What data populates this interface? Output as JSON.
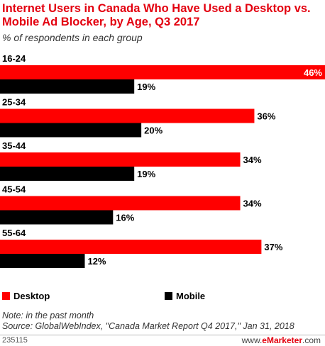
{
  "chart_data": {
    "type": "bar",
    "orientation": "horizontal",
    "title": "Internet Users in Canada Who Have Used a Desktop vs. Mobile Ad Blocker, by Age, Q3 2017",
    "subtitle": "% of respondents in each group",
    "categories": [
      "16-24",
      "25-34",
      "35-44",
      "45-54",
      "55-64"
    ],
    "series": [
      {
        "name": "Desktop",
        "values": [
          46,
          36,
          34,
          34,
          37
        ],
        "labels": [
          "46%",
          "36%",
          "34%",
          "34%",
          "37%"
        ],
        "color": "#ff0000"
      },
      {
        "name": "Mobile",
        "values": [
          19,
          20,
          19,
          16,
          12
        ],
        "labels": [
          "19%",
          "20%",
          "19%",
          "16%",
          "12%"
        ],
        "color": "#000000"
      }
    ],
    "xlim": [
      0,
      46
    ],
    "grid": false,
    "legend_position": "bottom-left"
  },
  "legend": {
    "desktop_label": "Desktop",
    "mobile_label": "Mobile",
    "desktop_color": "#ff0000",
    "mobile_color": "#000000"
  },
  "notes": {
    "note": "Note: in the past month",
    "source": "Source: GlobalWebIndex, \"Canada Market Report Q4 2017,\" Jan 31, 2018"
  },
  "footer": {
    "chart_id": "235115",
    "brand_prefix": "www.",
    "brand_name": "eMarketer",
    "brand_suffix": ".com"
  },
  "colors": {
    "title": "#e3000f",
    "brand_accent": "#e3000f"
  }
}
